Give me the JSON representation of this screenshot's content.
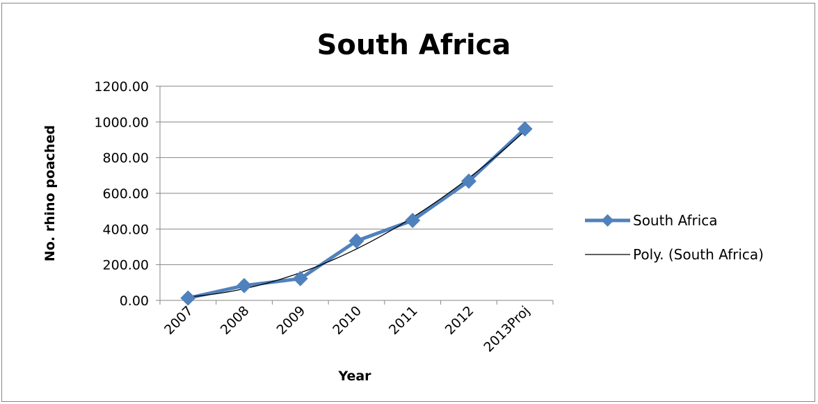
{
  "chart_data": {
    "type": "line",
    "title": "South Africa",
    "xlabel": "Year",
    "ylabel": "No. rhino poached",
    "categories": [
      "2007",
      "2008",
      "2009",
      "2010",
      "2011",
      "2012",
      "2013Proj"
    ],
    "ylim": [
      0,
      1200
    ],
    "yticks": [
      "0.00",
      "200.00",
      "400.00",
      "600.00",
      "800.00",
      "1000.00",
      "1200.00"
    ],
    "grid": true,
    "legend": "right",
    "series": [
      {
        "name": "South Africa",
        "values": [
          13,
          83,
          122,
          333,
          448,
          668,
          961
        ],
        "color": "#4F81BD",
        "marker": "diamond"
      },
      {
        "name": "Poly. (South Africa)",
        "trend_of": "South Africa",
        "type": "polynomial",
        "color": "#000000"
      }
    ]
  }
}
